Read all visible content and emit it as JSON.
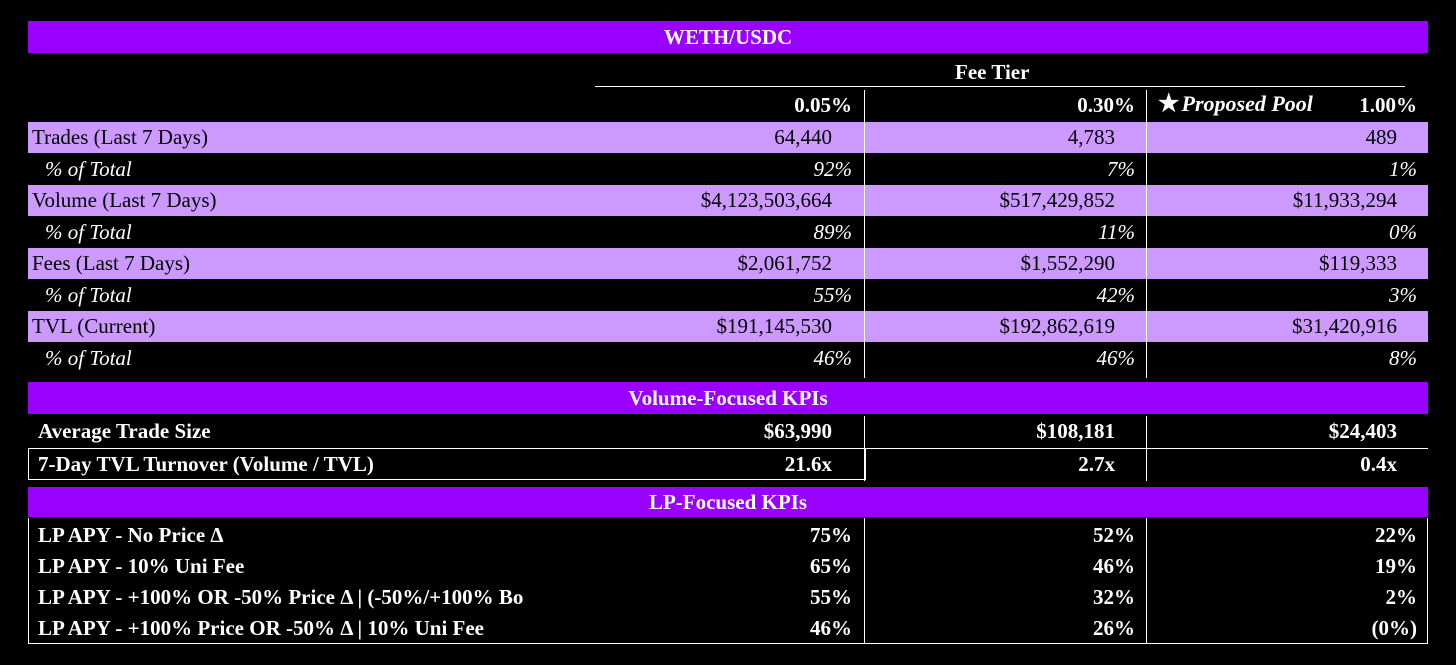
{
  "title": "WETH/USDC",
  "fee_tier_header": "Fee Tier",
  "proposed_pool_label": "Proposed Pool",
  "star_glyph": "★",
  "columns": [
    "0.05%",
    "0.30%",
    "1.00%"
  ],
  "pool_rows": [
    {
      "label": "Trades (Last 7 Days)",
      "values": [
        "64,440",
        "4,783",
        "489"
      ],
      "pct_label": "% of Total",
      "pct": [
        "92%",
        "7%",
        "1%"
      ]
    },
    {
      "label": "Volume (Last 7 Days)",
      "values": [
        "$4,123,503,664",
        "$517,429,852",
        "$11,933,294"
      ],
      "pct_label": "% of Total",
      "pct": [
        "89%",
        "11%",
        "0%"
      ]
    },
    {
      "label": "Fees (Last 7 Days)",
      "values": [
        "$2,061,752",
        "$1,552,290",
        "$119,333"
      ],
      "pct_label": "% of Total",
      "pct": [
        "55%",
        "42%",
        "3%"
      ]
    },
    {
      "label": "TVL (Current)",
      "values": [
        "$191,145,530",
        "$192,862,619",
        "$31,420,916"
      ],
      "pct_label": "% of Total",
      "pct": [
        "46%",
        "46%",
        "8%"
      ]
    }
  ],
  "volume_kpis": {
    "title": "Volume-Focused KPIs",
    "rows": [
      {
        "label": "Average Trade Size",
        "values": [
          "$63,990",
          "$108,181",
          "$24,403"
        ]
      },
      {
        "label": "7-Day TVL Turnover (Volume / TVL)",
        "values": [
          "21.6x",
          "2.7x",
          "0.4x"
        ]
      }
    ]
  },
  "lp_kpis": {
    "title": "LP-Focused KPIs",
    "rows": [
      {
        "label": "LP APY - No Price Δ",
        "values": [
          "75%",
          "52%",
          "22%"
        ]
      },
      {
        "label": "LP APY - 10% Uni Fee",
        "values": [
          "65%",
          "46%",
          "19%"
        ]
      },
      {
        "label": "LP APY - +100% OR -50% Price Δ | (-50%/+100% Bo",
        "values": [
          "55%",
          "32%",
          "2%"
        ]
      },
      {
        "label": "LP APY - +100% Price OR -50% Δ | 10% Uni Fee",
        "values": [
          "46%",
          "26%",
          "(0%)"
        ]
      }
    ]
  }
}
